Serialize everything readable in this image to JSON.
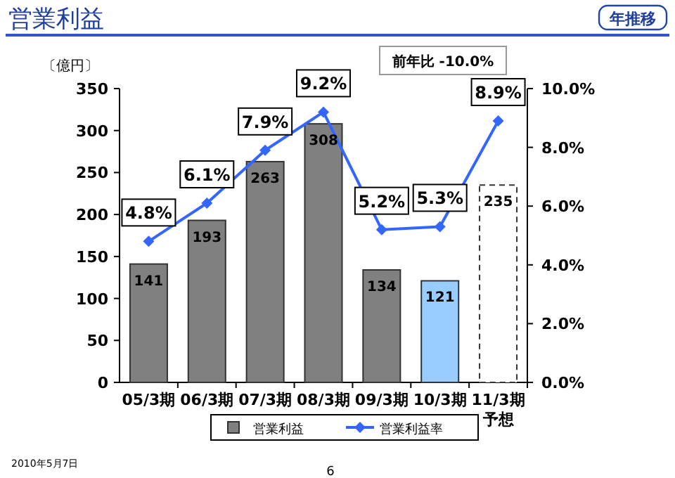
{
  "chart_data": {
    "type": "bar",
    "title": "営業利益",
    "subtitle": "年推移",
    "ylabel": "〔億円〕",
    "categories": [
      "05/3期",
      "06/3期",
      "07/3期",
      "08/3期",
      "09/3期",
      "10/3期",
      "11/3期予想"
    ],
    "series": [
      {
        "name": "営業利益",
        "color": "#808080",
        "colors": [
          "#808080",
          "#808080",
          "#808080",
          "#808080",
          "#808080",
          "#99ccff",
          "#ffffff"
        ],
        "values": [
          141,
          193,
          263,
          308,
          134,
          121,
          235
        ]
      },
      {
        "name": "営業利益率",
        "type": "line",
        "axis": "y2",
        "color": "#3366ff",
        "marker": "diamond",
        "values": [
          4.8,
          6.1,
          7.9,
          9.2,
          5.2,
          5.3,
          8.9
        ],
        "value_labels": [
          "4.8%",
          "6.1%",
          "7.9%",
          "9.2%",
          "5.2%",
          "5.3%",
          "8.9%"
        ]
      }
    ],
    "ylim": [
      0,
      350
    ],
    "yticks": [
      0,
      50,
      100,
      150,
      200,
      250,
      300,
      350
    ],
    "y2lim": [
      0,
      10
    ],
    "y2ticks": [
      {
        "value": 0,
        "label": "0.0%"
      },
      {
        "value": 2,
        "label": "2.0%"
      },
      {
        "value": 4,
        "label": "4.0%"
      },
      {
        "value": 6,
        "label": "6.0%"
      },
      {
        "value": 8,
        "label": "8.0%"
      },
      {
        "value": 10,
        "label": "10.0%"
      }
    ],
    "data_labels": true,
    "legend": "bottom",
    "annotations": [
      "前年比 -10.0%",
      "2010年5月7日",
      "6"
    ]
  }
}
